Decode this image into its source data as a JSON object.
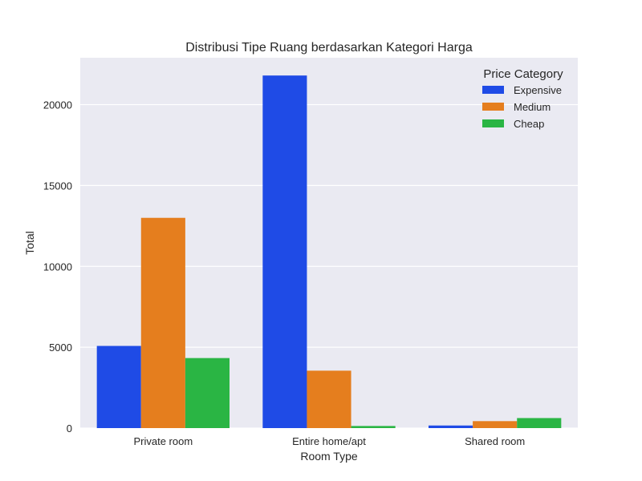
{
  "chart_data": {
    "type": "bar",
    "title": "Distribusi Tipe Ruang berdasarkan Kategori Harga",
    "xlabel": "Room Type",
    "ylabel": "Total",
    "categories": [
      "Private room",
      "Entire home/apt",
      "Shared room"
    ],
    "series": [
      {
        "name": "Expensive",
        "color": "#1f4be6",
        "values": [
          5080,
          21800,
          160
        ]
      },
      {
        "name": "Medium",
        "color": "#e57e1e",
        "values": [
          13000,
          3550,
          430
        ]
      },
      {
        "name": "Cheap",
        "color": "#2ab544",
        "values": [
          4330,
          130,
          620
        ]
      }
    ],
    "ylim": [
      0,
      22900
    ],
    "yticks": [
      0,
      5000,
      10000,
      15000,
      20000
    ],
    "grid": true,
    "legend": {
      "title": "Price Category",
      "placement": "top-right"
    },
    "colors": {
      "plot_background": "#eaeaf2",
      "grid": "#ffffff"
    }
  }
}
